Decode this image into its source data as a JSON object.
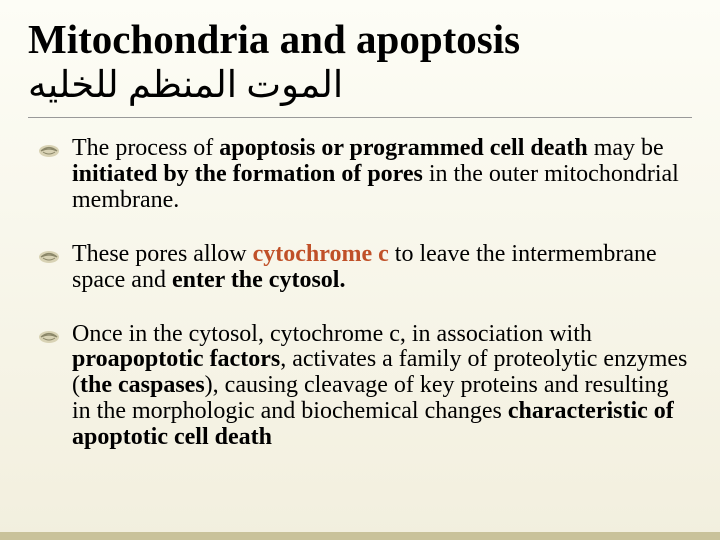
{
  "title": "Mitochondria and apoptosis",
  "subtitle": "الموت المنظم للخليه",
  "bullets": [
    {
      "segments": [
        {
          "text": "The process of ",
          "style": "normal"
        },
        {
          "text": "apoptosis or programmed cell death",
          "style": "bold"
        },
        {
          "text": " may be ",
          "style": "normal"
        },
        {
          "text": "initiated by the formation of pores",
          "style": "bold"
        },
        {
          "text": " in the outer mitochondrial membrane.",
          "style": "normal"
        }
      ]
    },
    {
      "segments": [
        {
          "text": "These pores allow ",
          "style": "normal"
        },
        {
          "text": "cytochrome c",
          "style": "brown-bold"
        },
        {
          "text": " to leave the intermembrane space and ",
          "style": "normal"
        },
        {
          "text": "enter the cytosol.",
          "style": "bold"
        }
      ]
    },
    {
      "segments": [
        {
          "text": "Once in the cytosol, cytochrome c, in association with ",
          "style": "normal"
        },
        {
          "text": "proapoptotic factors",
          "style": "bold"
        },
        {
          "text": ", activates a family of proteolytic enzymes (",
          "style": "normal"
        },
        {
          "text": "the caspases",
          "style": "bold"
        },
        {
          "text": "), causing cleavage of key proteins and resulting in the morphologic and biochemical changes ",
          "style": "normal"
        },
        {
          "text": "characteristic of apoptotic cell death",
          "style": "bold"
        }
      ]
    }
  ],
  "colors": {
    "bg_top": "#fdfdf6",
    "bg_bottom": "#f2efde",
    "text": "#000000",
    "brown": "#c05028",
    "divider": "#999999",
    "icon_oval": "#d8d2b4",
    "icon_arc": "#8a8668",
    "bottom_border": "#c9c29a"
  },
  "fonts": {
    "title_size": 41,
    "subtitle_size": 37,
    "body_size": 24
  }
}
